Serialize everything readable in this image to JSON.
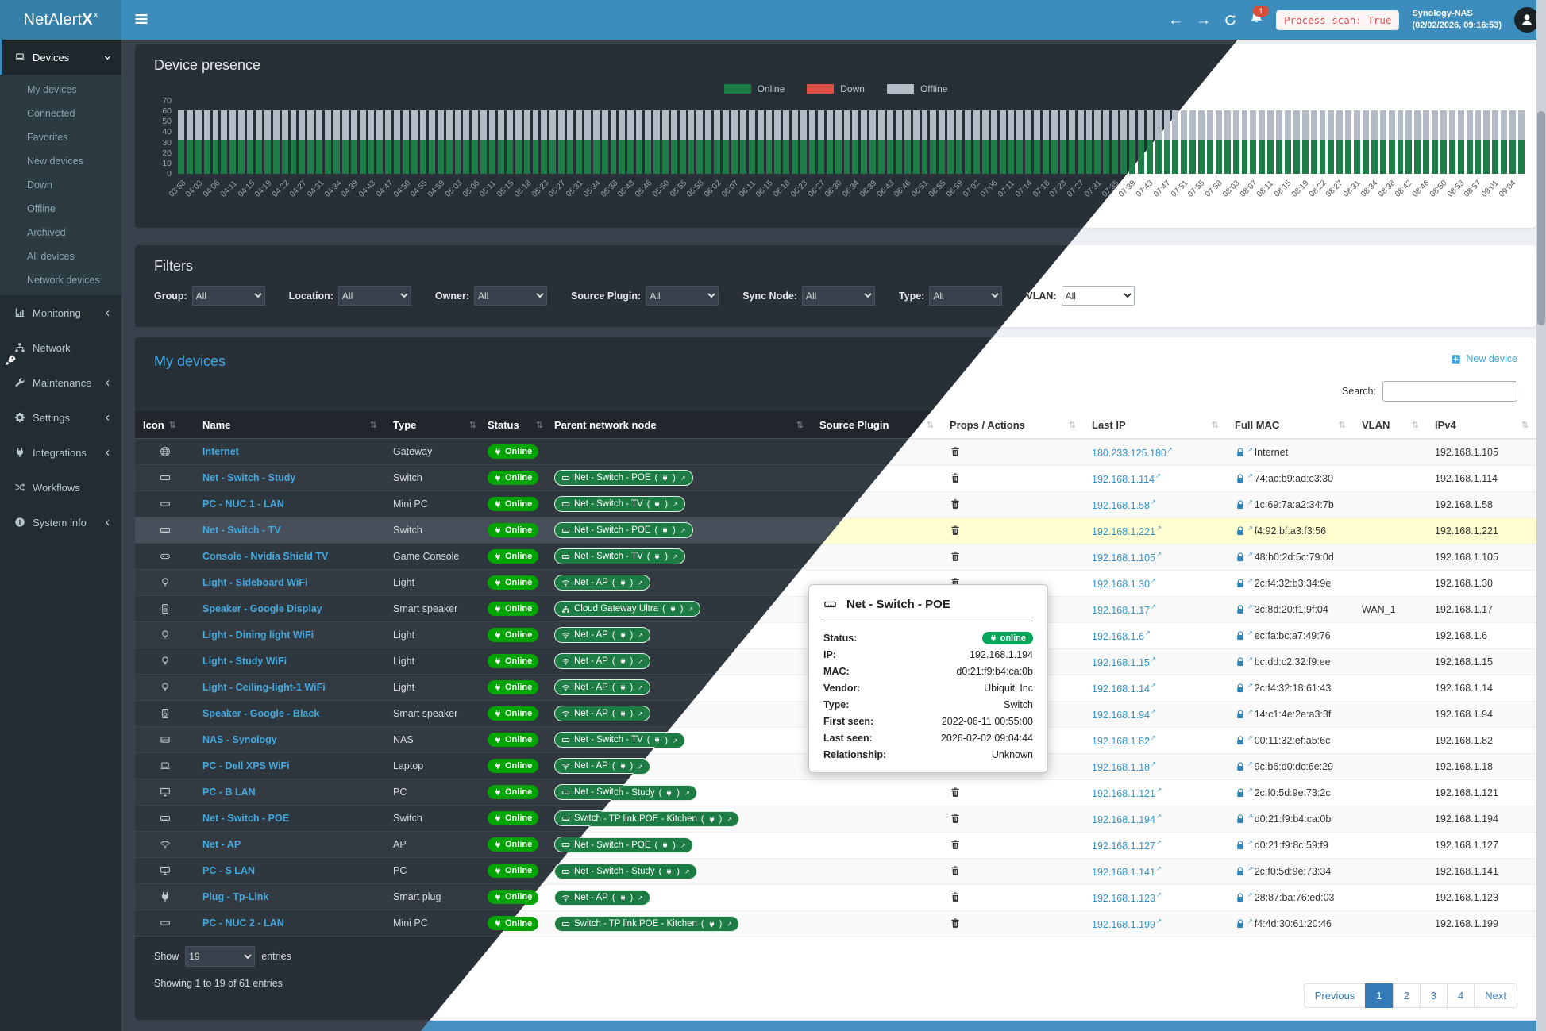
{
  "header": {
    "app_name": "NetAlert",
    "app_sup": "x",
    "bell_count": "1",
    "process_scan": "Process scan: True",
    "host": "Synology-NAS",
    "timestamp": "(02/02/2026, 09:16:53)"
  },
  "sidebar": {
    "sections": [
      {
        "label": "Devices",
        "icon": "laptop-icon",
        "chevron": "down",
        "active": true,
        "children": [
          "My devices",
          "Connected",
          "Favorites",
          "New devices",
          "Down",
          "Offline",
          "Archived",
          "All devices",
          "Network devices"
        ]
      },
      {
        "label": "Monitoring",
        "icon": "chart-icon",
        "chevron": "left"
      },
      {
        "label": "Network",
        "icon": "network-icon"
      },
      {
        "label": "Maintenance",
        "icon": "wrench-icon",
        "chevron": "left"
      },
      {
        "label": "Settings",
        "icon": "gear-icon",
        "chevron": "left"
      },
      {
        "label": "Integrations",
        "icon": "plug-icon",
        "chevron": "left"
      },
      {
        "label": "Workflows",
        "icon": "shuffle-icon"
      },
      {
        "label": "System info",
        "icon": "info-icon",
        "chevron": "left"
      }
    ]
  },
  "chart": {
    "title": "Device presence",
    "legend": [
      {
        "label": "Online",
        "color": "#1e7d46"
      },
      {
        "label": "Down",
        "color": "#dc5045"
      },
      {
        "label": "Offline",
        "color": "#b4bbc6"
      }
    ]
  },
  "chart_data": {
    "type": "bar",
    "stacked": true,
    "title": "Device presence",
    "xlabel": "",
    "ylabel": "",
    "ylim": [
      0,
      70
    ],
    "yticks": [
      0,
      10,
      20,
      30,
      40,
      50,
      60,
      70
    ],
    "legend_position": "top-center",
    "categories": [
      "03:58",
      "04:03",
      "04:06",
      "04:11",
      "04:15",
      "04:19",
      "04:22",
      "04:27",
      "04:31",
      "04:34",
      "04:39",
      "04:43",
      "04:47",
      "04:50",
      "04:55",
      "04:59",
      "05:03",
      "05:06",
      "05:11",
      "05:15",
      "05:18",
      "05:23",
      "05:27",
      "05:31",
      "05:34",
      "05:38",
      "05:43",
      "05:46",
      "05:50",
      "05:55",
      "05:58",
      "06:02",
      "06:07",
      "06:11",
      "06:15",
      "06:18",
      "06:23",
      "06:27",
      "06:30",
      "06:34",
      "06:39",
      "06:43",
      "06:46",
      "06:51",
      "06:55",
      "06:59",
      "07:02",
      "07:06",
      "07:11",
      "07:14",
      "07:18",
      "07:23",
      "07:27",
      "07:31",
      "07:35",
      "07:39",
      "07:43",
      "07:47",
      "07:51",
      "07:55",
      "07:58",
      "08:03",
      "08:07",
      "08:11",
      "08:15",
      "08:19",
      "08:22",
      "08:27",
      "08:31",
      "08:34",
      "08:38",
      "08:42",
      "08:46",
      "08:50",
      "08:53",
      "08:57",
      "09:01",
      "09:04"
    ],
    "series": [
      {
        "name": "Online",
        "color": "#1e7d46",
        "constant_value": 33
      },
      {
        "name": "Down",
        "color": "#dc5045",
        "constant_value": 0
      },
      {
        "name": "Offline",
        "color": "#b4bbc6",
        "constant_value": 28
      }
    ]
  },
  "filters": {
    "title": "Filters",
    "items": [
      {
        "label": "Group:",
        "value": "All"
      },
      {
        "label": "Location:",
        "value": "All"
      },
      {
        "label": "Owner:",
        "value": "All"
      },
      {
        "label": "Source Plugin:",
        "value": "All"
      },
      {
        "label": "Sync Node:",
        "value": "All"
      },
      {
        "label": "Type:",
        "value": "All"
      },
      {
        "label": "VLAN:",
        "value": "All"
      }
    ]
  },
  "devices": {
    "title": "My devices",
    "new_device": "New device",
    "search_label": "Search:",
    "columns": [
      "Icon",
      "Name",
      "Type",
      "Status",
      "Parent network node",
      "Source Plugin",
      "Props / Actions",
      "Last IP",
      "Full MAC",
      "VLAN",
      "IPv4"
    ],
    "rows": [
      {
        "icon": "globe-icon",
        "name": "Internet",
        "type": "Gateway",
        "status": "Online",
        "parent": "",
        "parent_icon": "",
        "last_ip": "180.233.125.180",
        "mac": "Internet",
        "vlan": "",
        "ipv4": "192.168.1.105",
        "highlighted": false
      },
      {
        "icon": "switch-icon",
        "name": "Net - Switch - Study",
        "type": "Switch",
        "status": "Online",
        "parent": "Net - Switch - POE",
        "parent_icon": "switch-icon",
        "last_ip": "192.168.1.114",
        "mac": "74:ac:b9:ad:c3:30",
        "vlan": "",
        "ipv4": "192.168.1.114",
        "highlighted": false
      },
      {
        "icon": "minipc-icon",
        "name": "PC - NUC 1 - LAN",
        "type": "Mini PC",
        "status": "Online",
        "parent": "Net - Switch - TV",
        "parent_icon": "switch-icon",
        "last_ip": "192.168.1.58",
        "mac": "1c:69:7a:a2:34:7b",
        "vlan": "",
        "ipv4": "192.168.1.58",
        "highlighted": false
      },
      {
        "icon": "switch-icon",
        "name": "Net - Switch - TV",
        "type": "Switch",
        "status": "Online",
        "parent": "Net - Switch - POE",
        "parent_icon": "switch-icon",
        "last_ip": "192.168.1.221",
        "mac": "f4:92:bf:a3:f3:56",
        "vlan": "",
        "ipv4": "192.168.1.221",
        "highlighted": true
      },
      {
        "icon": "console-icon",
        "name": "Console - Nvidia Shield TV",
        "type": "Game Console",
        "status": "Online",
        "parent": "Net - Switch - TV",
        "parent_icon": "switch-icon",
        "last_ip": "192.168.1.105",
        "mac": "48:b0:2d:5c:79:0d",
        "vlan": "",
        "ipv4": "192.168.1.105",
        "highlighted": false
      },
      {
        "icon": "bulb-icon",
        "name": "Light - Sideboard WiFi",
        "type": "Light",
        "status": "Online",
        "parent": "Net - AP",
        "parent_icon": "wifi-icon",
        "last_ip": "192.168.1.30",
        "mac": "2c:f4:32:b3:34:9e",
        "vlan": "",
        "ipv4": "192.168.1.30",
        "highlighted": false
      },
      {
        "icon": "speaker-icon",
        "name": "Speaker - Google Display",
        "type": "Smart speaker",
        "status": "Online",
        "parent": "Cloud Gateway Ultra",
        "parent_icon": "network-icon",
        "last_ip": "192.168.1.17",
        "mac": "3c:8d:20:f1:9f:04",
        "vlan": "WAN_1",
        "ipv4": "192.168.1.17",
        "highlighted": false
      },
      {
        "icon": "bulb-icon",
        "name": "Light - Dining light WiFi",
        "type": "Light",
        "status": "Online",
        "parent": "Net - AP",
        "parent_icon": "wifi-icon",
        "last_ip": "192.168.1.6",
        "mac": "ec:fa:bc:a7:49:76",
        "vlan": "",
        "ipv4": "192.168.1.6",
        "highlighted": false
      },
      {
        "icon": "bulb-icon",
        "name": "Light - Study WiFi",
        "type": "Light",
        "status": "Online",
        "parent": "Net - AP",
        "parent_icon": "wifi-icon",
        "last_ip": "192.168.1.15",
        "mac": "bc:dd:c2:32:f9:ee",
        "vlan": "",
        "ipv4": "192.168.1.15",
        "highlighted": false
      },
      {
        "icon": "bulb-icon",
        "name": "Light - Ceiling-light-1 WiFi",
        "type": "Light",
        "status": "Online",
        "parent": "Net - AP",
        "parent_icon": "wifi-icon",
        "last_ip": "192.168.1.14",
        "mac": "2c:f4:32:18:61:43",
        "vlan": "",
        "ipv4": "192.168.1.14",
        "highlighted": false
      },
      {
        "icon": "speaker-icon",
        "name": "Speaker - Google - Black",
        "type": "Smart speaker",
        "status": "Online",
        "parent": "Net - AP",
        "parent_icon": "wifi-icon",
        "last_ip": "192.168.1.94",
        "mac": "14:c1:4e:2e:a3:3f",
        "vlan": "",
        "ipv4": "192.168.1.94",
        "highlighted": false
      },
      {
        "icon": "nas-icon",
        "name": "NAS - Synology",
        "type": "NAS",
        "status": "Online",
        "parent": "Net - Switch - TV",
        "parent_icon": "switch-icon",
        "last_ip": "192.168.1.82",
        "mac": "00:11:32:ef:a5:6c",
        "vlan": "",
        "ipv4": "192.168.1.82",
        "highlighted": false
      },
      {
        "icon": "laptop-icon",
        "name": "PC - Dell XPS WiFi",
        "type": "Laptop",
        "status": "Online",
        "parent": "Net - AP",
        "parent_icon": "wifi-icon",
        "last_ip": "192.168.1.18",
        "mac": "9c:b6:d0:dc:6e:29",
        "vlan": "",
        "ipv4": "192.168.1.18",
        "highlighted": false
      },
      {
        "icon": "desktop-icon",
        "name": "PC - B LAN",
        "type": "PC",
        "status": "Online",
        "parent": "Net - Switch - Study",
        "parent_icon": "switch-icon",
        "last_ip": "192.168.1.121",
        "mac": "2c:f0:5d:9e:73:2c",
        "vlan": "",
        "ipv4": "192.168.1.121",
        "highlighted": false
      },
      {
        "icon": "switch-icon",
        "name": "Net - Switch - POE",
        "type": "Switch",
        "status": "Online",
        "parent": "Switch - TP link POE - Kitchen",
        "parent_icon": "switch-icon",
        "last_ip": "192.168.1.194",
        "mac": "d0:21:f9:b4:ca:0b",
        "vlan": "",
        "ipv4": "192.168.1.194",
        "highlighted": false
      },
      {
        "icon": "wifi-icon",
        "name": "Net - AP",
        "type": "AP",
        "status": "Online",
        "parent": "Net - Switch - POE",
        "parent_icon": "switch-icon",
        "last_ip": "192.168.1.127",
        "mac": "d0:21:f9:8c:59:f9",
        "vlan": "",
        "ipv4": "192.168.1.127",
        "highlighted": false
      },
      {
        "icon": "desktop-icon",
        "name": "PC - S LAN",
        "type": "PC",
        "status": "Online",
        "parent": "Net - Switch - Study",
        "parent_icon": "switch-icon",
        "last_ip": "192.168.1.141",
        "mac": "2c:f0:5d:9e:73:34",
        "vlan": "",
        "ipv4": "192.168.1.141",
        "highlighted": false
      },
      {
        "icon": "plug-icon",
        "name": "Plug - Tp-Link",
        "type": "Smart plug",
        "status": "Online",
        "parent": "Net - AP",
        "parent_icon": "wifi-icon",
        "last_ip": "192.168.1.123",
        "mac": "28:87:ba:76:ed:03",
        "vlan": "",
        "ipv4": "192.168.1.123",
        "highlighted": false
      },
      {
        "icon": "minipc-icon",
        "name": "PC - NUC 2 - LAN",
        "type": "Mini PC",
        "status": "Online",
        "parent": "Switch - TP link POE - Kitchen",
        "parent_icon": "switch-icon",
        "last_ip": "192.168.1.199",
        "mac": "f4:4d:30:61:20:46",
        "vlan": "",
        "ipv4": "192.168.1.199",
        "highlighted": false
      }
    ],
    "show_label": "Show",
    "show_entries": "19",
    "entries_label": "entries",
    "summary": "Showing 1 to 19 of 61 entries",
    "pagination": {
      "prev": "Previous",
      "pages": [
        "1",
        "2",
        "3",
        "4"
      ],
      "active": "1",
      "next": "Next"
    }
  },
  "tooltip": {
    "title": "Net - Switch - POE",
    "rows": [
      {
        "label": "Status:",
        "value": "online",
        "pill": true
      },
      {
        "label": "IP:",
        "value": "192.168.1.194"
      },
      {
        "label": "MAC:",
        "value": "d0:21:f9:b4:ca:0b"
      },
      {
        "label": "Vendor:",
        "value": "Ubiquiti Inc"
      },
      {
        "label": "Type:",
        "value": "Switch"
      },
      {
        "label": "First seen:",
        "value": "2022-06-11 00:55:00"
      },
      {
        "label": "Last seen:",
        "value": "2026-02-02 09:04:44"
      },
      {
        "label": "Relationship:",
        "value": "Unknown"
      }
    ]
  }
}
